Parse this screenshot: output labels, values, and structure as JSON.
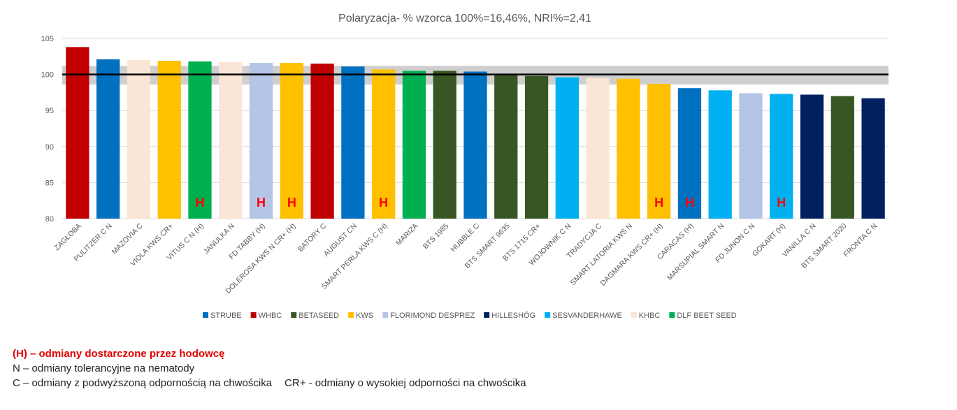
{
  "chart_data": {
    "type": "bar",
    "title": "Polaryzacja- % wzorca 100%=16,46%, NRI%=2,41",
    "xlabel": "",
    "ylabel": "",
    "ylim": [
      80,
      105
    ],
    "yticks": [
      80,
      85,
      90,
      95,
      100,
      105
    ],
    "grid": true,
    "legend_position": "bottom",
    "reference_line": 100,
    "reference_band": [
      98.6,
      101.2
    ],
    "categories": [
      "ZAGŁOBA",
      "PULITZER C N",
      "MAZOVIA C",
      "VIOLA KWS CR+",
      "VITUS C N (H)",
      "JANULKA N",
      "FD TABBY (H)",
      "DOLEROSA KWS N CR+ (H)",
      "BATORY C",
      "AUGUST CN",
      "SMART PERLA KWS C (H)",
      "MARIZA",
      "BTS 1985",
      "HUBBLE C",
      "BTS SMART 9635",
      "BTS 1715 CR+",
      "WOJOWNIK C N",
      "TRADYCJA C",
      "SMART LATORIA KWS N",
      "DAGMARA KWS CR+ (H)",
      "CARACAS (H)",
      "MARSUPIAL SMART N",
      "FD JUNON C N",
      "GOKART (H)",
      "VANILLA C N",
      "BTS SMART 2020",
      "FRONTA C N"
    ],
    "values": [
      103.8,
      102.1,
      102.0,
      101.9,
      101.8,
      101.7,
      101.6,
      101.6,
      101.5,
      101.1,
      100.7,
      100.5,
      100.5,
      100.4,
      100.0,
      99.8,
      99.6,
      99.5,
      99.4,
      98.7,
      98.1,
      97.8,
      97.4,
      97.3,
      97.2,
      97.0,
      96.7
    ],
    "breeders": [
      "WHBC",
      "STRUBE",
      "KHBC",
      "KWS",
      "DLF BEET SEED",
      "KHBC",
      "FLORIMOND DESPREZ",
      "KWS",
      "WHBC",
      "STRUBE",
      "KWS",
      "DLF BEET SEED",
      "BETASEED",
      "STRUBE",
      "BETASEED",
      "BETASEED",
      "SESVANDERHAWE",
      "KHBC",
      "KWS",
      "KWS",
      "STRUBE",
      "SESVANDERHAWE",
      "FLORIMOND DESPREZ",
      "SESVANDERHAWE",
      "HILLESHÖG",
      "BETASEED",
      "HILLESHÖG"
    ],
    "h_marked": [
      false,
      false,
      false,
      false,
      true,
      false,
      true,
      true,
      false,
      false,
      true,
      false,
      false,
      false,
      false,
      false,
      false,
      false,
      false,
      true,
      true,
      false,
      false,
      true,
      false,
      false,
      false
    ],
    "h_label": "H",
    "series": [
      {
        "name": "STRUBE",
        "color": "#0070c0"
      },
      {
        "name": "WHBC",
        "color": "#c00000"
      },
      {
        "name": "BETASEED",
        "color": "#375623"
      },
      {
        "name": "KWS",
        "color": "#ffc000"
      },
      {
        "name": "FLORIMOND DESPREZ",
        "color": "#b4c6e7"
      },
      {
        "name": "HILLESHÖG",
        "color": "#002060"
      },
      {
        "name": "SESVANDERHAWE",
        "color": "#00b0f0"
      },
      {
        "name": "KHBC",
        "color": "#fbe5d6"
      },
      {
        "name": "DLF BEET SEED",
        "color": "#00b050"
      }
    ]
  },
  "notes": {
    "line1": "(H) – odmiany dostarczone przez hodowcę",
    "line2": "N – odmiany tolerancyjne na nematody",
    "line3a": "C – odmiany z podwyższoną odpornością na chwościka",
    "line3b": "CR+ - odmiany o wysokiej odporności na chwościka"
  }
}
